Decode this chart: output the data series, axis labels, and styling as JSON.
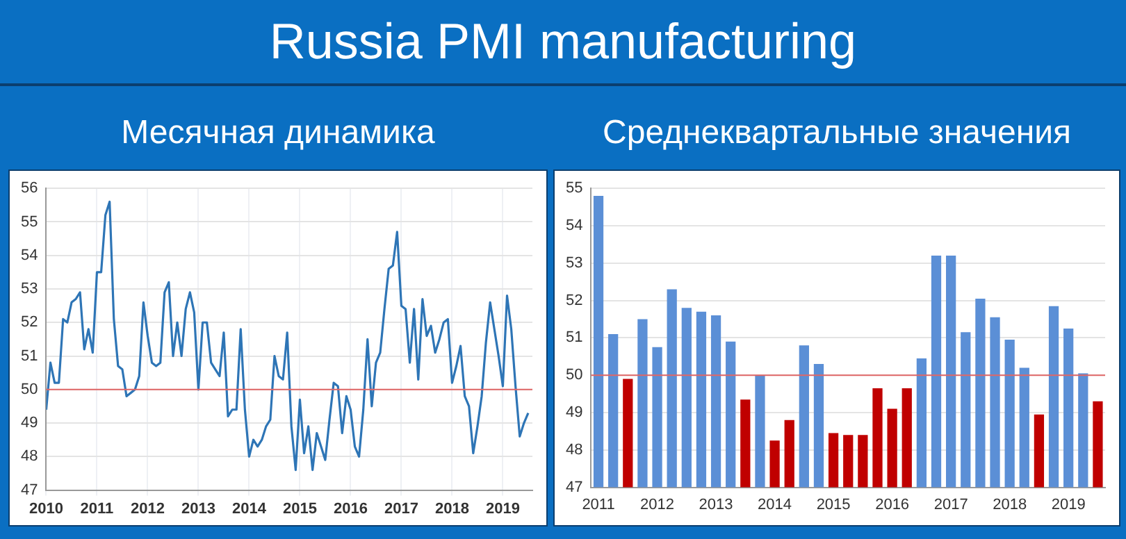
{
  "chart_data": [
    {
      "type": "line",
      "title": "Russia PMI manufacturing",
      "subtitle": "Месячная динамика",
      "x": [
        "2010-01",
        "2010-02",
        "2010-03",
        "2010-04",
        "2010-05",
        "2010-06",
        "2010-07",
        "2010-08",
        "2010-09",
        "2010-10",
        "2010-11",
        "2010-12",
        "2011-01",
        "2011-02",
        "2011-03",
        "2011-04",
        "2011-05",
        "2011-06",
        "2011-07",
        "2011-08",
        "2011-09",
        "2011-10",
        "2011-11",
        "2011-12",
        "2012-01",
        "2012-02",
        "2012-03",
        "2012-04",
        "2012-05",
        "2012-06",
        "2012-07",
        "2012-08",
        "2012-09",
        "2012-10",
        "2012-11",
        "2012-12",
        "2013-01",
        "2013-02",
        "2013-03",
        "2013-04",
        "2013-05",
        "2013-06",
        "2013-07",
        "2013-08",
        "2013-09",
        "2013-10",
        "2013-11",
        "2013-12",
        "2014-01",
        "2014-02",
        "2014-03",
        "2014-04",
        "2014-05",
        "2014-06",
        "2014-07",
        "2014-08",
        "2014-09",
        "2014-10",
        "2014-11",
        "2014-12",
        "2015-01",
        "2015-02",
        "2015-03",
        "2015-04",
        "2015-05",
        "2015-06",
        "2015-07",
        "2015-08",
        "2015-09",
        "2015-10",
        "2015-11",
        "2015-12",
        "2016-01",
        "2016-02",
        "2016-03",
        "2016-04",
        "2016-05",
        "2016-06",
        "2016-07",
        "2016-08",
        "2016-09",
        "2016-10",
        "2016-11",
        "2016-12",
        "2017-01",
        "2017-02",
        "2017-03",
        "2017-04",
        "2017-05",
        "2017-06",
        "2017-07",
        "2017-08",
        "2017-09",
        "2017-10",
        "2017-11",
        "2017-12",
        "2018-01",
        "2018-02",
        "2018-03",
        "2018-04",
        "2018-05",
        "2018-06",
        "2018-07",
        "2018-08",
        "2018-09",
        "2018-10",
        "2018-11",
        "2018-12",
        "2019-01",
        "2019-02",
        "2019-03",
        "2019-04",
        "2019-05",
        "2019-06",
        "2019-07"
      ],
      "series": [
        {
          "color": "#2e75b6",
          "values": [
            49.4,
            50.8,
            50.2,
            50.2,
            52.1,
            52.0,
            52.6,
            52.7,
            52.9,
            51.2,
            51.8,
            51.1,
            53.5,
            53.5,
            55.2,
            55.6,
            52.1,
            50.7,
            50.6,
            49.8,
            49.9,
            50.0,
            50.4,
            52.6,
            51.6,
            50.8,
            50.7,
            50.8,
            52.9,
            53.2,
            51.0,
            52.0,
            51.0,
            52.4,
            52.9,
            52.3,
            50.0,
            52.0,
            52.0,
            50.8,
            50.6,
            50.4,
            51.7,
            49.2,
            49.4,
            49.4,
            51.8,
            49.4,
            48.0,
            48.5,
            48.3,
            48.5,
            48.9,
            49.1,
            51.0,
            50.4,
            50.3,
            51.7,
            48.9,
            47.6,
            49.7,
            48.1,
            48.9,
            47.6,
            48.7,
            48.3,
            47.9,
            49.1,
            50.2,
            50.1,
            48.7,
            49.8,
            49.4,
            48.3,
            48.0,
            49.4,
            51.5,
            49.5,
            50.8,
            51.1,
            52.4,
            53.6,
            53.7,
            54.7,
            52.5,
            52.4,
            50.8,
            52.4,
            50.3,
            52.7,
            51.6,
            51.9,
            51.1,
            51.5,
            52.0,
            52.1,
            50.2,
            50.7,
            51.3,
            49.8,
            49.5,
            48.1,
            48.9,
            49.8,
            51.4,
            52.6,
            51.8,
            51.0,
            50.1,
            52.8,
            51.8,
            50.1,
            48.6,
            49.0,
            49.3
          ]
        }
      ],
      "xlim": [
        "2010-01",
        "2019-08"
      ],
      "xticks": [
        "2010",
        "2011",
        "2012",
        "2013",
        "2014",
        "2015",
        "2016",
        "2017",
        "2018",
        "2019"
      ],
      "ylim": [
        47,
        56
      ],
      "yticks": [
        47,
        48,
        49,
        50,
        51,
        52,
        53,
        54,
        55,
        56
      ],
      "grid": true,
      "ref_lines": [
        {
          "axis": "y",
          "value": 50,
          "color": "#e06666"
        }
      ]
    },
    {
      "type": "bar",
      "subtitle": "Среднеквартальные значения",
      "categories": [
        "2011",
        null,
        null,
        null,
        "2012",
        null,
        null,
        null,
        "2013",
        null,
        null,
        null,
        "2014",
        null,
        null,
        null,
        "2015",
        null,
        null,
        null,
        "2016",
        null,
        null,
        null,
        "2017",
        null,
        null,
        null,
        "2018",
        null,
        null,
        null,
        "2019",
        null,
        null
      ],
      "values": [
        54.8,
        51.1,
        49.9,
        51.5,
        50.75,
        52.3,
        51.8,
        51.7,
        51.6,
        50.9,
        49.35,
        50.0,
        48.25,
        48.8,
        50.8,
        50.3,
        48.45,
        48.4,
        48.4,
        49.65,
        49.1,
        49.65,
        50.45,
        53.2,
        53.2,
        51.15,
        52.05,
        51.55,
        50.95,
        50.2,
        48.95,
        51.85,
        51.25,
        50.05,
        49.3
      ],
      "colors": [
        "#5b8fd6",
        "#5b8fd6",
        "#c00000",
        "#5b8fd6",
        "#5b8fd6",
        "#5b8fd6",
        "#5b8fd6",
        "#5b8fd6",
        "#5b8fd6",
        "#5b8fd6",
        "#c00000",
        "#5b8fd6",
        "#c00000",
        "#c00000",
        "#5b8fd6",
        "#5b8fd6",
        "#c00000",
        "#c00000",
        "#c00000",
        "#c00000",
        "#c00000",
        "#c00000",
        "#5b8fd6",
        "#5b8fd6",
        "#5b8fd6",
        "#5b8fd6",
        "#5b8fd6",
        "#5b8fd6",
        "#5b8fd6",
        "#5b8fd6",
        "#c00000",
        "#5b8fd6",
        "#5b8fd6",
        "#5b8fd6",
        "#c00000"
      ],
      "ylim": [
        47,
        55
      ],
      "yticks": [
        47,
        48,
        49,
        50,
        51,
        52,
        53,
        54,
        55
      ],
      "grid": "y",
      "ref_lines": [
        {
          "axis": "y",
          "value": 50,
          "color": "#e06666"
        }
      ]
    }
  ]
}
